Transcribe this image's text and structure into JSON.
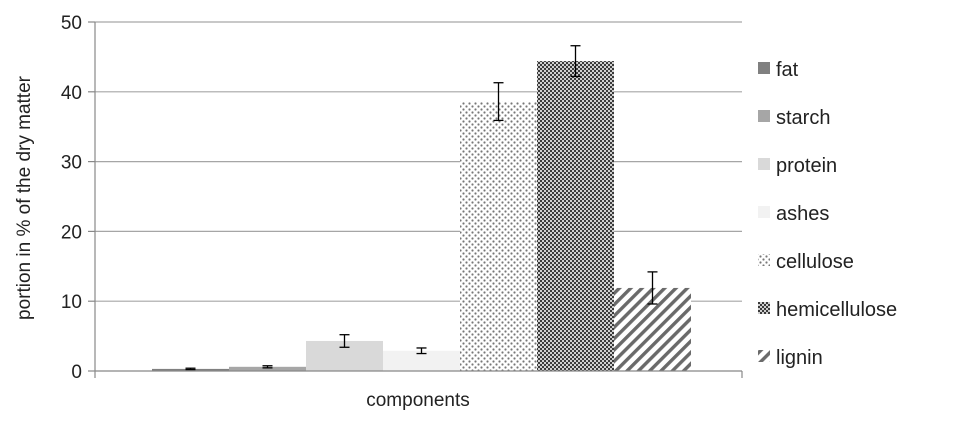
{
  "chart_data": {
    "type": "bar",
    "title": "",
    "xlabel": "components",
    "ylabel": "portion in % of the dry matter",
    "ylim": [
      0,
      50
    ],
    "yticks": [
      0,
      10,
      20,
      30,
      40,
      50
    ],
    "grid": true,
    "legend_position": "right",
    "series": [
      {
        "name": "fat",
        "value": 0.3,
        "error": 0.1,
        "color": "#808080",
        "pattern": "solid"
      },
      {
        "name": "starch",
        "value": 0.6,
        "error": 0.15,
        "color": "#a6a6a6",
        "pattern": "solid"
      },
      {
        "name": "protein",
        "value": 4.3,
        "error": 0.9,
        "color": "#d9d9d9",
        "pattern": "solid"
      },
      {
        "name": "ashes",
        "value": 2.9,
        "error": 0.4,
        "color": "#f2f2f2",
        "pattern": "solid"
      },
      {
        "name": "cellulose",
        "value": 38.6,
        "error": 2.7,
        "color": "#666666",
        "pattern": "dots"
      },
      {
        "name": "hemicellulose",
        "value": 44.4,
        "error": 2.2,
        "color": "#555555",
        "pattern": "checker"
      },
      {
        "name": "lignin",
        "value": 11.9,
        "error": 2.3,
        "color": "#666666",
        "pattern": "diagonal"
      }
    ]
  }
}
